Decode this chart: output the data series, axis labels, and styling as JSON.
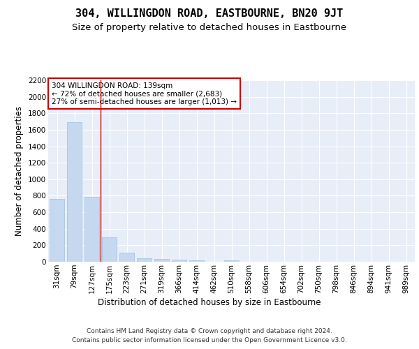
{
  "title": "304, WILLINGDON ROAD, EASTBOURNE, BN20 9JT",
  "subtitle": "Size of property relative to detached houses in Eastbourne",
  "xlabel": "Distribution of detached houses by size in Eastbourne",
  "ylabel": "Number of detached properties",
  "categories": [
    "31sqm",
    "79sqm",
    "127sqm",
    "175sqm",
    "223sqm",
    "271sqm",
    "319sqm",
    "366sqm",
    "414sqm",
    "462sqm",
    "510sqm",
    "558sqm",
    "606sqm",
    "654sqm",
    "702sqm",
    "750sqm",
    "798sqm",
    "846sqm",
    "894sqm",
    "941sqm",
    "989sqm"
  ],
  "values": [
    760,
    1690,
    790,
    300,
    110,
    45,
    30,
    25,
    20,
    0,
    20,
    0,
    0,
    0,
    0,
    0,
    0,
    0,
    0,
    0,
    0
  ],
  "bar_color": "#c5d8f0",
  "bar_edge_color": "#9dbfe0",
  "vline_color": "#cc0000",
  "annotation_text": "304 WILLINGDON ROAD: 139sqm\n← 72% of detached houses are smaller (2,683)\n27% of semi-detached houses are larger (1,013) →",
  "annotation_box_color": "#ffffff",
  "annotation_box_edge": "#cc0000",
  "footer": "Contains HM Land Registry data © Crown copyright and database right 2024.\nContains public sector information licensed under the Open Government Licence v3.0.",
  "ylim": [
    0,
    2200
  ],
  "yticks": [
    0,
    200,
    400,
    600,
    800,
    1000,
    1200,
    1400,
    1600,
    1800,
    2000,
    2200
  ],
  "title_fontsize": 11,
  "subtitle_fontsize": 9.5,
  "axis_label_fontsize": 8.5,
  "tick_fontsize": 7.5,
  "annotation_fontsize": 7.5,
  "footer_fontsize": 6.5,
  "fig_bg_color": "#ffffff",
  "plot_bg_color": "#e8eef8"
}
